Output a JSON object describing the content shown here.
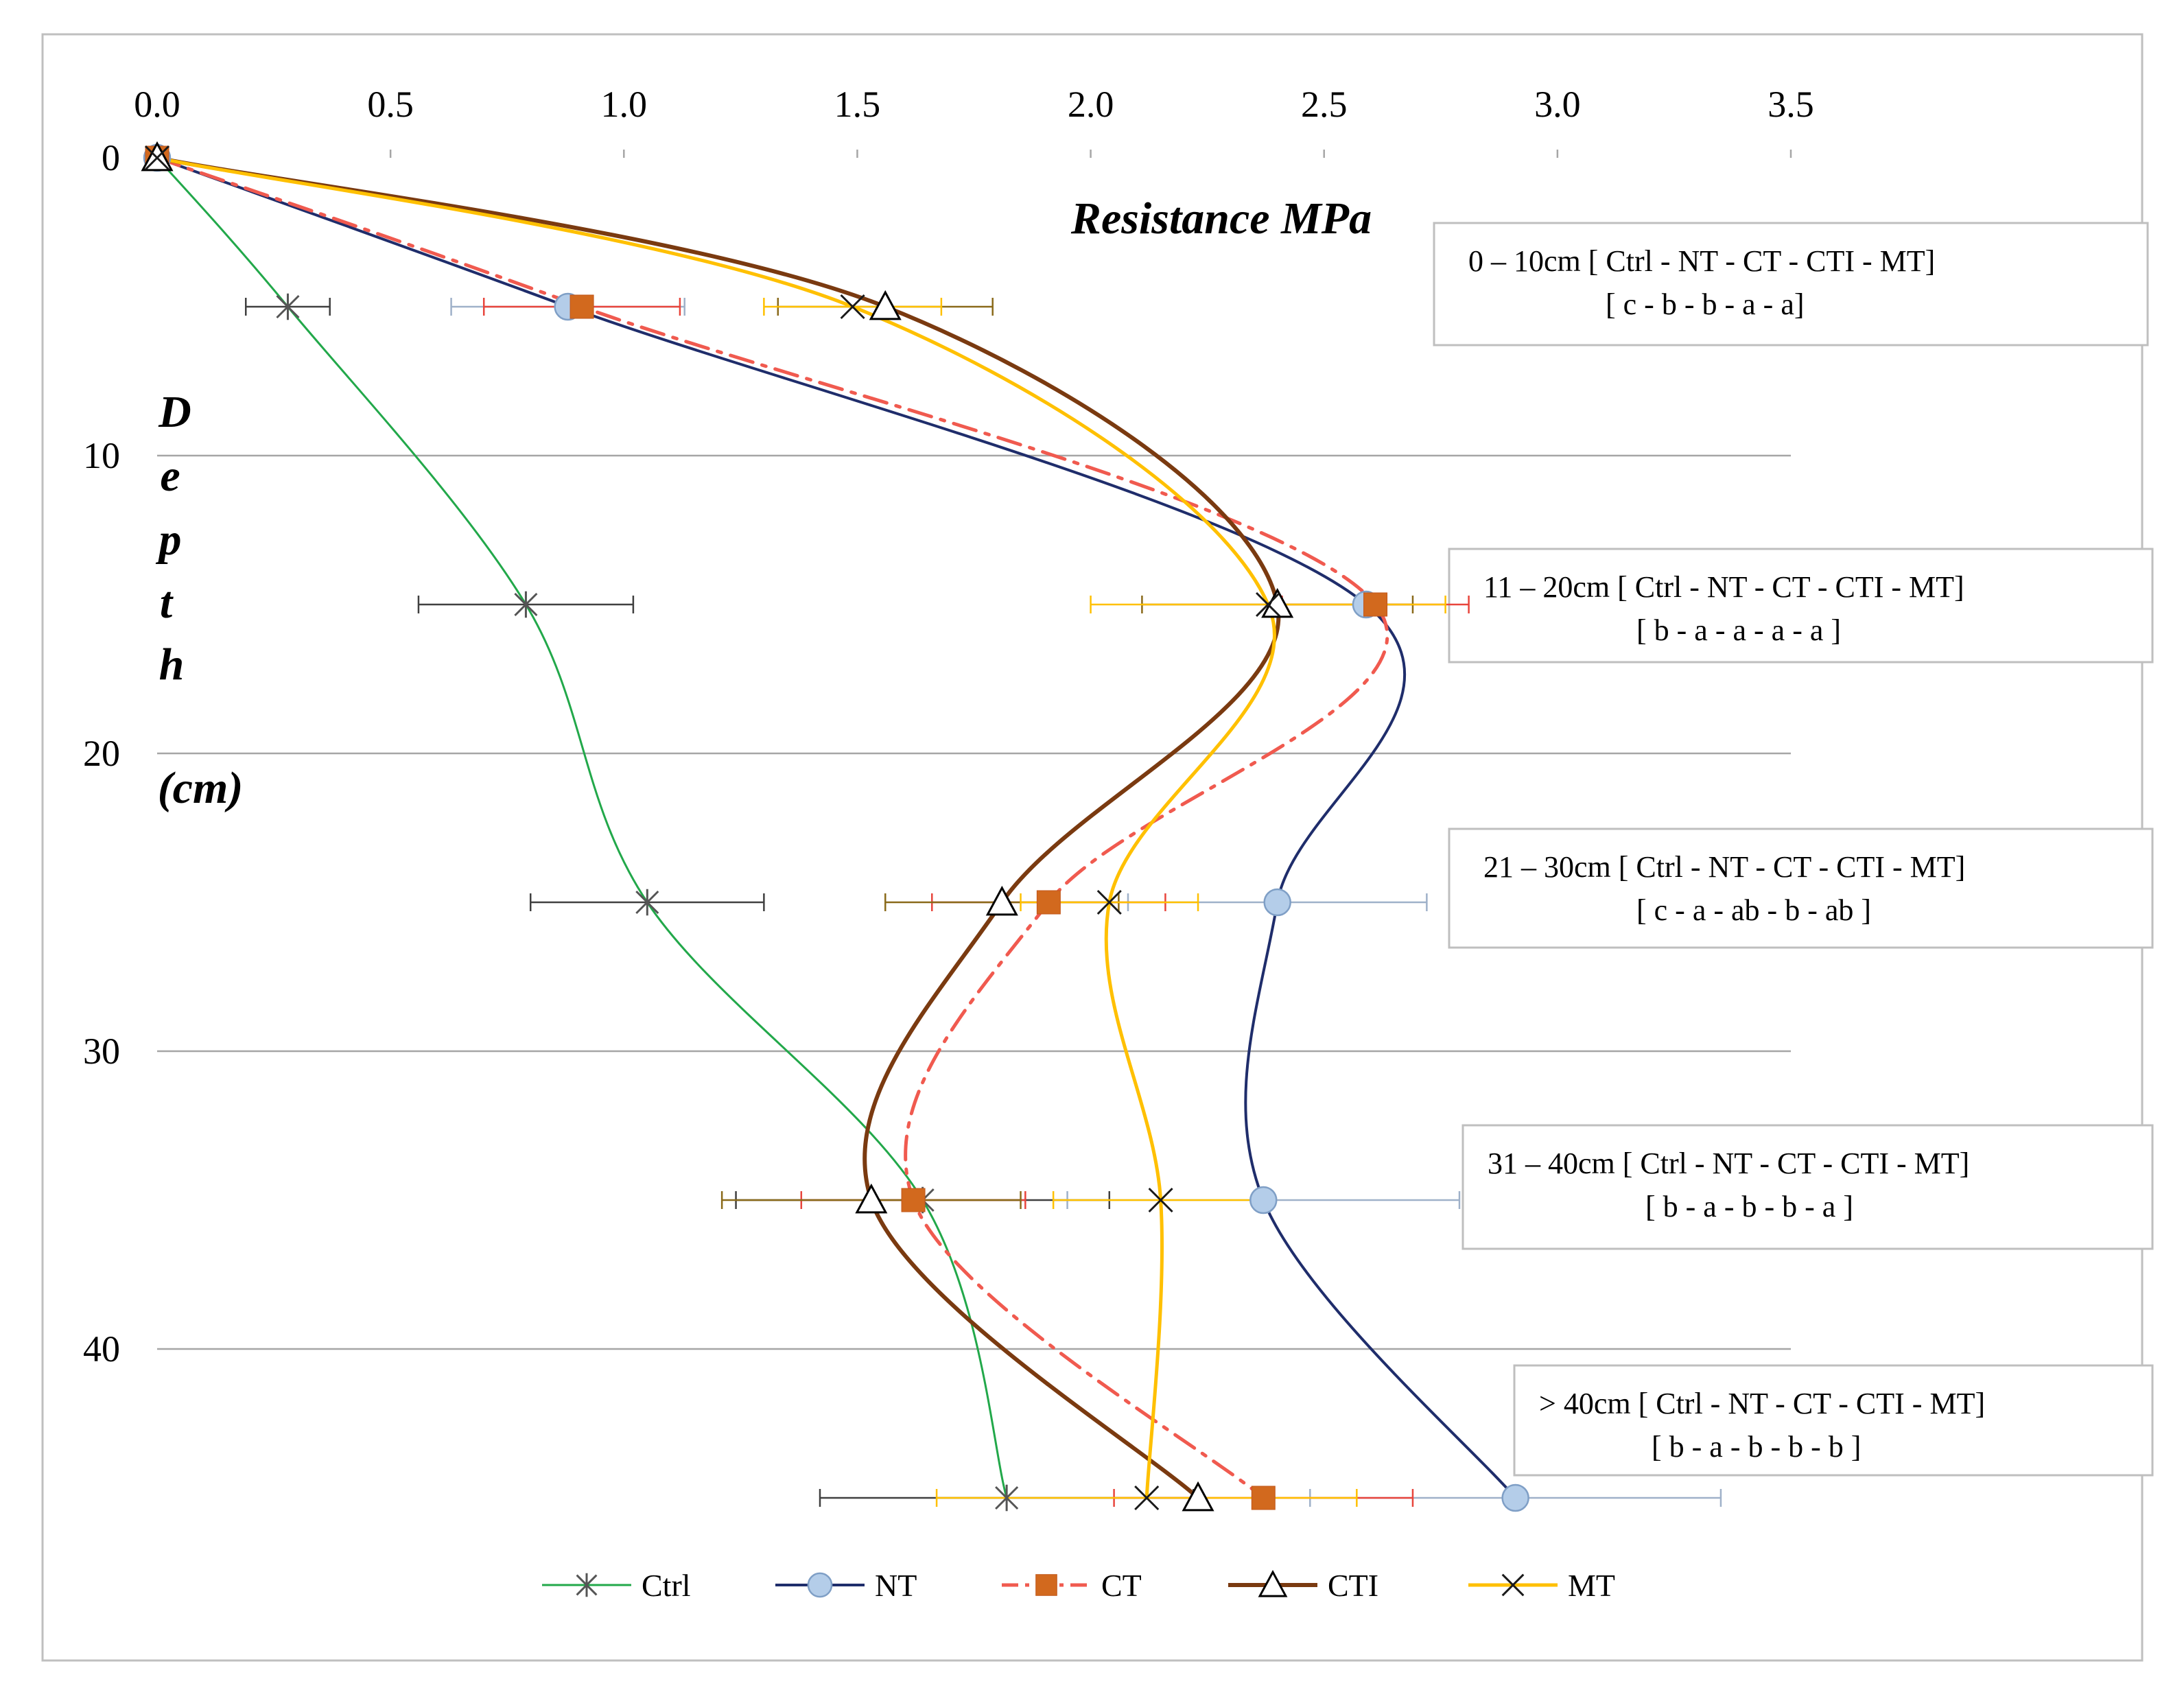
{
  "chart_data": {
    "type": "line",
    "orientation": "depth-profile",
    "x_axis": {
      "title": "Resistance MPa",
      "range": [
        0,
        3.5
      ],
      "ticks": [
        "0.0",
        "0.5",
        "1.0",
        "1.5",
        "2.0",
        "2.5",
        "3.0",
        "3.5"
      ],
      "position": "top"
    },
    "y_axis": {
      "title_letters": [
        "D",
        "e",
        "p",
        "t",
        "h",
        "(cm)"
      ],
      "range": [
        0,
        46
      ],
      "ticks": [
        "0",
        "10",
        "20",
        "30",
        "40"
      ],
      "inverted": true,
      "gridlines": true
    },
    "depths": [
      0,
      5,
      15,
      25,
      35,
      45
    ],
    "series": [
      {
        "name": "Ctrl",
        "color": "#22a84a",
        "dash": "solid",
        "width": 3,
        "marker": "asterisk",
        "values": [
          0,
          0.28,
          0.79,
          1.05,
          1.64,
          1.82
        ],
        "errors": [
          0,
          0.09,
          0.23,
          0.25,
          0.4,
          0.4
        ]
      },
      {
        "name": "NT",
        "color": "#1f2d6b",
        "dash": "solid",
        "width": 4,
        "marker": "circle",
        "values": [
          0,
          0.88,
          2.59,
          2.4,
          2.37,
          2.91
        ],
        "errors": [
          0,
          0.25,
          0,
          0.32,
          0.42,
          0.44
        ]
      },
      {
        "name": "CT",
        "color": "#f05a4f",
        "dash": "dashdot",
        "width": 5,
        "marker": "square",
        "values": [
          0,
          0.91,
          2.61,
          1.91,
          1.62,
          2.37
        ],
        "errors": [
          0,
          0.21,
          0.2,
          0.25,
          0.24,
          0.32
        ]
      },
      {
        "name": "CTI",
        "color": "#7a3a10",
        "dash": "solid",
        "width": 6,
        "marker": "triangle",
        "values": [
          0,
          1.56,
          2.4,
          1.81,
          1.53,
          2.23
        ],
        "errors": [
          0,
          0.23,
          0.29,
          0.25,
          0.32,
          0
        ]
      },
      {
        "name": "MT",
        "color": "#ffc000",
        "dash": "solid",
        "width": 5,
        "marker": "x",
        "values": [
          0,
          1.49,
          2.38,
          2.04,
          2.15,
          2.12
        ],
        "errors": [
          0,
          0.19,
          0.38,
          0.19,
          0.23,
          0.45
        ]
      }
    ],
    "annotations": [
      {
        "depth": 5,
        "line1": "0 – 10cm [ Ctrl - NT - CT - CTI - MT]",
        "line2": "[ c - b - b - a - a]"
      },
      {
        "depth": 15,
        "line1": "11 – 20cm [ Ctrl - NT - CT - CTI - MT]",
        "line2": "[ b - a - a - a - a ]"
      },
      {
        "depth": 25,
        "line1": "21 – 30cm [ Ctrl - NT - CT - CTI - MT]",
        "line2": "[ c - a - ab - b - ab ]"
      },
      {
        "depth": 35,
        "line1": "31 – 40cm [ Ctrl - NT - CT - CTI - MT]",
        "line2": "[ b - a - b - b - a ]"
      },
      {
        "depth": 45,
        "line1": "> 40cm [ Ctrl - NT - CT - CTI - MT]",
        "line2": "[ b - a - b - b - b ]"
      }
    ],
    "legend_position": "bottom"
  }
}
